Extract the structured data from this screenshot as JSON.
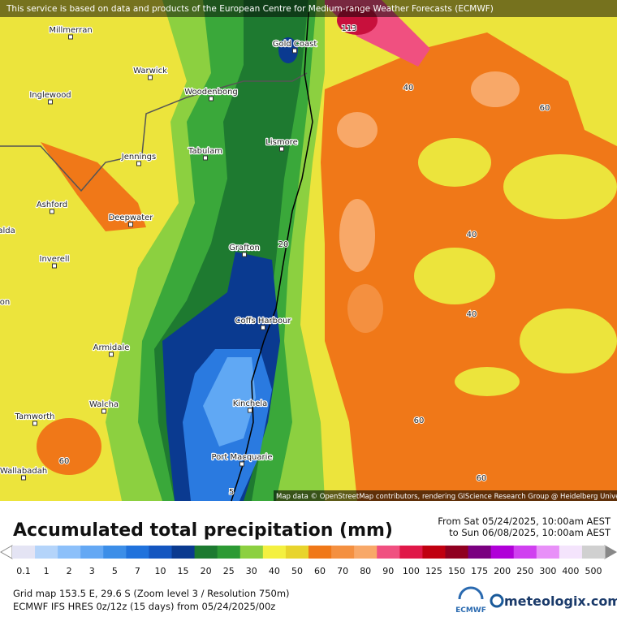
{
  "notice": "This service is based on data and products of the European Centre for Medium-range Weather Forecasts (ECMWF)",
  "map": {
    "towns": [
      "Millmerran",
      "Warwick",
      "Inglewood",
      "Woodenbong",
      "Gold Coast",
      "Lismore",
      "Tabulam",
      "Jennings",
      "Ashford",
      "Deepwater",
      "alda",
      "Inverell",
      "Grafton",
      "on",
      "Coffs Harbour",
      "Armidale",
      "Kinchela",
      "Walcha",
      "Tamworth",
      "Port Macquarie",
      "Wallabadah"
    ],
    "contour_labels": [
      113,
      40,
      60,
      40,
      20,
      40,
      60,
      60,
      60,
      5
    ],
    "attribution": "Map data © OpenStreetMap contributors, rendering GIScience Research Group @ Heidelberg University"
  },
  "title": "Accumulated total precipitation (mm)",
  "period": {
    "from": "From Sat 05/24/2025, 10:00am AEST",
    "to": "to Sun 06/08/2025, 10:00am AEST"
  },
  "legend": [
    {
      "value": 0.1,
      "color": "#e4e4f4"
    },
    {
      "value": 1,
      "color": "#b4d4fa"
    },
    {
      "value": 2,
      "color": "#8cc0fa"
    },
    {
      "value": 3,
      "color": "#64a8f4"
    },
    {
      "value": 5,
      "color": "#3c8ee8"
    },
    {
      "value": 7,
      "color": "#2072dc"
    },
    {
      "value": 10,
      "color": "#1456c0"
    },
    {
      "value": 15,
      "color": "#0a3a90"
    },
    {
      "value": 20,
      "color": "#1c7a30"
    },
    {
      "value": 25,
      "color": "#2c9a34"
    },
    {
      "value": 30,
      "color": "#8cd040"
    },
    {
      "value": 40,
      "color": "#f4f040"
    },
    {
      "value": 50,
      "color": "#e8d42c"
    },
    {
      "value": 60,
      "color": "#f07818"
    },
    {
      "value": 70,
      "color": "#f49040"
    },
    {
      "value": 80,
      "color": "#f8a868"
    },
    {
      "value": 90,
      "color": "#f05080"
    },
    {
      "value": 100,
      "color": "#e01848"
    },
    {
      "value": 125,
      "color": "#c00010"
    },
    {
      "value": 150,
      "color": "#900020"
    },
    {
      "value": 175,
      "color": "#7a0080"
    },
    {
      "value": 200,
      "color": "#b000d8"
    },
    {
      "value": 250,
      "color": "#d040f0"
    },
    {
      "value": 300,
      "color": "#e890f8"
    },
    {
      "value": 400,
      "color": "#f4e4fc"
    },
    {
      "value": 500,
      "color": "#d0d0d0"
    }
  ],
  "footer": [
    "Grid map 153.5 E, 29.6 S (Zoom level 3 / Resolution 750m)",
    "ECMWF IFS HRES 0z/12z (15 days) from  05/24/2025/00z"
  ],
  "logos": {
    "ecmwf": "ECMWF",
    "meteologix": "meteologix.com"
  }
}
